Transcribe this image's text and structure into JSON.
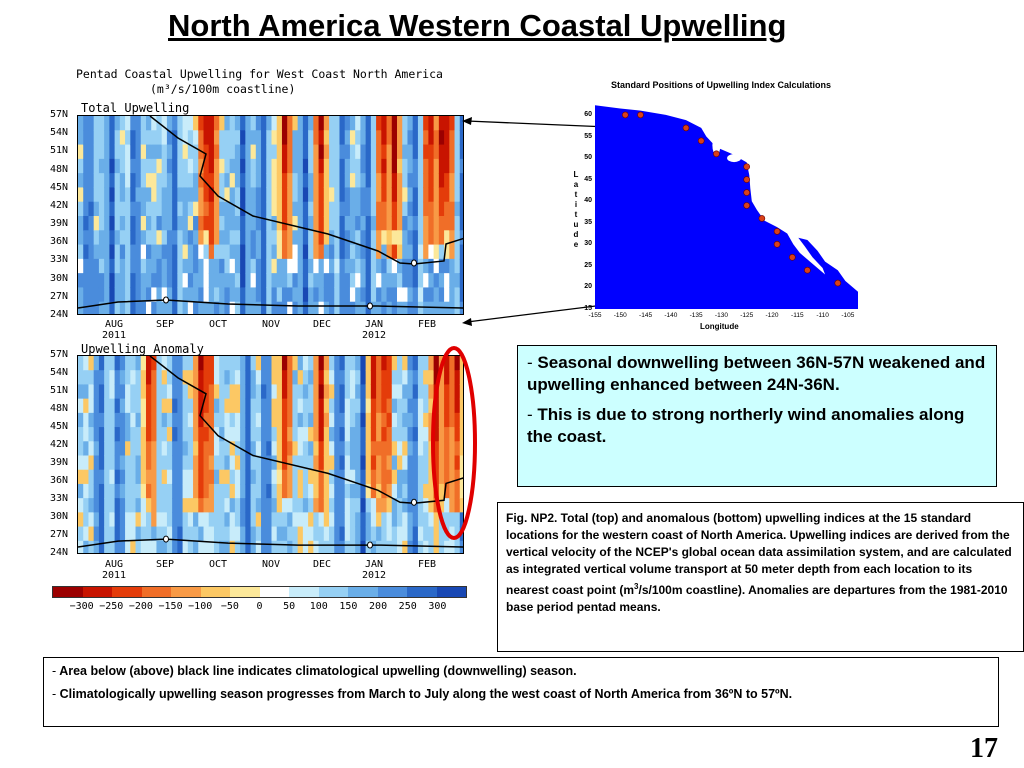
{
  "slide": {
    "title": "North America Western Coastal Upwelling",
    "page_number": "17"
  },
  "figure": {
    "title_line1": "Pentad Coastal Upwelling for West Coast North America",
    "title_line2": "(m³/s/100m coastline)",
    "panel_top_label": "Total Upwelling",
    "panel_bottom_label": "Upwelling Anomaly",
    "latitudes": [
      "57N",
      "54N",
      "51N",
      "48N",
      "45N",
      "42N",
      "39N",
      "36N",
      "33N",
      "30N",
      "27N",
      "24N"
    ],
    "months": [
      {
        "label": "AUG",
        "year": "2011"
      },
      {
        "label": "SEP",
        "year": ""
      },
      {
        "label": "OCT",
        "year": ""
      },
      {
        "label": "NOV",
        "year": ""
      },
      {
        "label": "DEC",
        "year": ""
      },
      {
        "label": "JAN",
        "year": "2012"
      },
      {
        "label": "FEB",
        "year": ""
      }
    ],
    "colorbar_labels": [
      "−300",
      "−250",
      "−200",
      "−150",
      "−100",
      "−50",
      "0",
      "50",
      "100",
      "150",
      "200",
      "250",
      "300"
    ],
    "colorbar_colors": [
      "#9b0000",
      "#c81400",
      "#e43c0a",
      "#f06e28",
      "#f89a46",
      "#fcc864",
      "#fce89a",
      "#ffffff",
      "#c8ecfa",
      "#96d0f4",
      "#6aaee8",
      "#4a8cdc",
      "#2a68c8",
      "#1848b4"
    ]
  },
  "chart_data": [
    {
      "type": "heatmap",
      "title": "Total Upwelling",
      "x": [
        "AUG 2011",
        "SEP",
        "OCT",
        "NOV",
        "DEC",
        "JAN 2012",
        "FEB"
      ],
      "y": [
        "57N",
        "54N",
        "51N",
        "48N",
        "45N",
        "42N",
        "39N",
        "36N",
        "33N",
        "30N",
        "27N",
        "24N"
      ],
      "units": "m³/s/100m coastline",
      "colorbar_range": [
        -300,
        300
      ],
      "note_values": "Positive (blue) upwelling dominant south of 36N; strong downwelling (red) bands north of ~42N in OCT, NOV, late DEC, JAN and FEB"
    },
    {
      "type": "heatmap",
      "title": "Upwelling Anomaly",
      "x": [
        "AUG 2011",
        "SEP",
        "OCT",
        "NOV",
        "DEC",
        "JAN 2012",
        "FEB"
      ],
      "y": [
        "57N",
        "54N",
        "51N",
        "48N",
        "45N",
        "42N",
        "39N",
        "36N",
        "33N",
        "30N",
        "27N",
        "24N"
      ],
      "units": "m³/s/100m coastline",
      "colorbar_range": [
        -300,
        300
      ]
    }
  ],
  "map": {
    "title": "Standard Positions of Upwelling Index Calculations",
    "lat_word": "Latitude",
    "lon_word": "Longitude",
    "lat_ticks": [
      "60",
      "55",
      "50",
      "45",
      "40",
      "35",
      "30",
      "25",
      "20",
      "15"
    ],
    "lon_ticks": [
      "-155",
      "-150",
      "-145",
      "-140",
      "-135",
      "-130",
      "-125",
      "-120",
      "-115",
      "-110",
      "-105"
    ],
    "stations": [
      {
        "lat": 60,
        "lon": -149
      },
      {
        "lat": 60,
        "lon": -146
      },
      {
        "lat": 57,
        "lon": -137
      },
      {
        "lat": 54,
        "lon": -134
      },
      {
        "lat": 51,
        "lon": -131
      },
      {
        "lat": 48,
        "lon": -125
      },
      {
        "lat": 45,
        "lon": -125
      },
      {
        "lat": 42,
        "lon": -125
      },
      {
        "lat": 39,
        "lon": -125
      },
      {
        "lat": 36,
        "lon": -122
      },
      {
        "lat": 33,
        "lon": -119
      },
      {
        "lat": 30,
        "lon": -119
      },
      {
        "lat": 27,
        "lon": -116
      },
      {
        "lat": 24,
        "lon": -113
      },
      {
        "lat": 21,
        "lon": -107
      }
    ]
  },
  "summary": {
    "bullet1": "Seasonal downwelling between 36N-57N weakened and upwelling enhanced between 24N-36N.",
    "bullet2": "This is due to strong northerly wind anomalies along the coast."
  },
  "caption": {
    "p1": "Fig. NP2. Total (top) and anomalous (bottom) upwelling indices at the 15 standard locations for the western coast of North America. Upwelling indices are derived from the vertical velocity of the NCEP's global ocean data assimilation system, and are calculated as integrated vertical volume transport at 50 meter depth from each location to its nearest coast point (m",
    "sup": "3",
    "p2": "/s/100m coastline). Anomalies are departures from the 1981-2010 base period pentad means."
  },
  "bottom": {
    "bullet1": "Area below (above) black line indicates climatological upwelling (downwelling) season.",
    "bullet2": "Climatologically upwelling season progresses from March to July along the west coast of North America from 36ºN to 57ºN."
  },
  "dash": "-"
}
